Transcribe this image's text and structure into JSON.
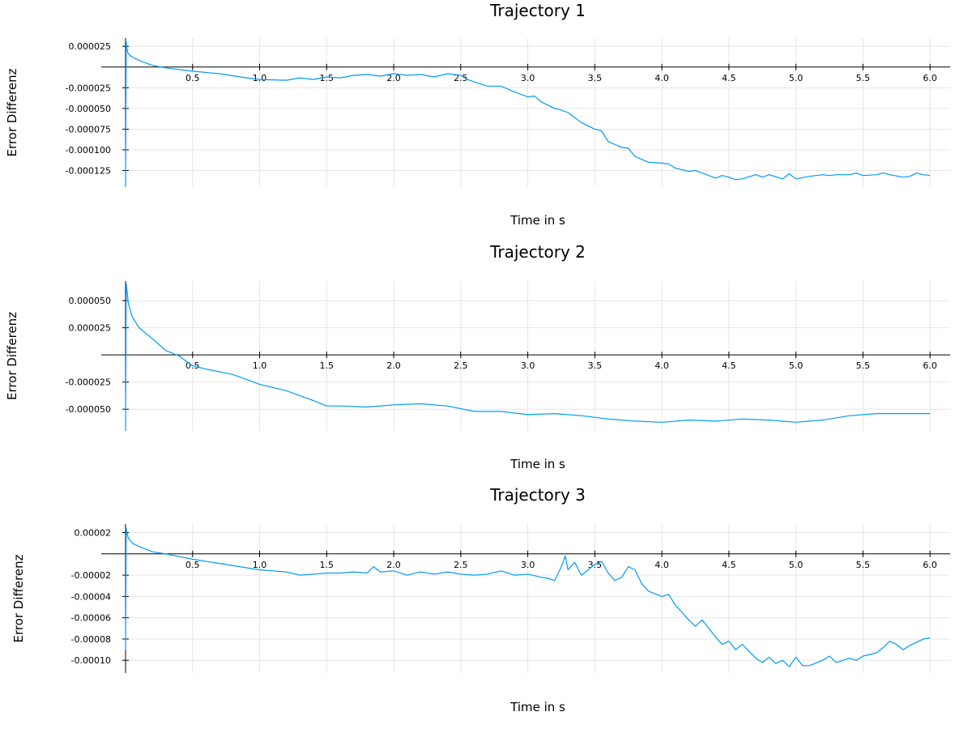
{
  "chart_data": [
    {
      "type": "line",
      "title": "Trajectory 1",
      "xlabel": "Time in s",
      "ylabel": "Error Differenz",
      "xlim": [
        0,
        6.15
      ],
      "ylim": [
        -0.000145,
        3.5e-05
      ],
      "xticks": [
        0.5,
        1.0,
        1.5,
        2.0,
        2.5,
        3.0,
        3.5,
        4.0,
        4.5,
        5.0,
        5.5,
        6.0
      ],
      "xtick_labels": [
        "0.5",
        "1.0",
        "1.5",
        "2.0",
        "2.5",
        "3.0",
        "3.5",
        "4.0",
        "4.5",
        "5.0",
        "5.5",
        "6.0"
      ],
      "yticks": [
        2.5e-05,
        -2.5e-05,
        -5e-05,
        -7.5e-05,
        -0.0001,
        -0.000125
      ],
      "ytick_labels": [
        "0.000025",
        "-0.000025",
        "-0.000050",
        "-0.000075",
        "-0.000100",
        "-0.000125"
      ],
      "grid": true,
      "color": "#009AF9",
      "series": [
        {
          "x": [
            0,
            0.005,
            0.01,
            0.02,
            0.05,
            0.1,
            0.2,
            0.3,
            0.5,
            0.7,
            0.9,
            1.0,
            1.2,
            1.3,
            1.4,
            1.5,
            1.6,
            1.7,
            1.8,
            1.9,
            2.0,
            2.1,
            2.2,
            2.3,
            2.4,
            2.5,
            2.55,
            2.6,
            2.7,
            2.8,
            2.9,
            3.0,
            3.05,
            3.1,
            3.2,
            3.25,
            3.3,
            3.4,
            3.5,
            3.55,
            3.6,
            3.7,
            3.75,
            3.8,
            3.9,
            4.0,
            4.05,
            4.1,
            4.2,
            4.25,
            4.3,
            4.4,
            4.45,
            4.5,
            4.55,
            4.6,
            4.7,
            4.75,
            4.8,
            4.9,
            4.95,
            5.0,
            5.1,
            5.2,
            5.25,
            5.3,
            5.4,
            5.45,
            5.5,
            5.6,
            5.65,
            5.7,
            5.8,
            5.85,
            5.9,
            5.95,
            6.0
          ],
          "y": [
            -0.00015,
            3e-05,
            2.2e-05,
            1.6e-05,
            1.2e-05,
            8e-06,
            2e-06,
            -1e-06,
            -5e-06,
            -8e-06,
            -1.3e-05,
            -1.5e-05,
            -1.6e-05,
            -1.3e-05,
            -1.5e-05,
            -1.2e-05,
            -1.3e-05,
            -1e-05,
            -9e-06,
            -1.1e-05,
            -8e-06,
            -1e-05,
            -9e-06,
            -1.2e-05,
            -8e-06,
            -1e-05,
            -1.5e-05,
            -1.8e-05,
            -2.3e-05,
            -2.3e-05,
            -3e-05,
            -3.6e-05,
            -3.5e-05,
            -4.2e-05,
            -5e-05,
            -5.2e-05,
            -5.5e-05,
            -6.7e-05,
            -7.5e-05,
            -7.7e-05,
            -9e-05,
            -9.7e-05,
            -9.8e-05,
            -0.000108,
            -0.000115,
            -0.000116,
            -0.000117,
            -0.000122,
            -0.000126,
            -0.000125,
            -0.000128,
            -0.000134,
            -0.000131,
            -0.000133,
            -0.000136,
            -0.000135,
            -0.00013,
            -0.000133,
            -0.00013,
            -0.000135,
            -0.000129,
            -0.000135,
            -0.000132,
            -0.00013,
            -0.000131,
            -0.00013,
            -0.00013,
            -0.000128,
            -0.000131,
            -0.00013,
            -0.000128,
            -0.00013,
            -0.000133,
            -0.000132,
            -0.000128,
            -0.00013,
            -0.000131
          ]
        }
      ]
    },
    {
      "type": "line",
      "title": "Trajectory 2",
      "xlabel": "Time in s",
      "ylabel": "Error Differenz",
      "xlim": [
        0,
        6.15
      ],
      "ylim": [
        -7e-05,
        6.8e-05
      ],
      "xticks": [
        0.5,
        1.0,
        1.5,
        2.0,
        2.5,
        3.0,
        3.5,
        4.0,
        4.5,
        5.0,
        5.5,
        6.0
      ],
      "xtick_labels": [
        "0.5",
        "1.0",
        "1.5",
        "2.0",
        "2.5",
        "3.0",
        "3.5",
        "4.0",
        "4.5",
        "5.0",
        "5.5",
        "6.0"
      ],
      "yticks": [
        5e-05,
        2.5e-05,
        -2.5e-05,
        -5e-05
      ],
      "ytick_labels": [
        "0.000050",
        "0.000025",
        "-0.000025",
        "-0.000050"
      ],
      "grid": true,
      "color": "#009AF9",
      "series": [
        {
          "x": [
            0,
            0.005,
            0.01,
            0.02,
            0.05,
            0.1,
            0.2,
            0.3,
            0.4,
            0.5,
            0.6,
            0.8,
            1.0,
            1.2,
            1.4,
            1.5,
            1.6,
            1.8,
            2.0,
            2.2,
            2.4,
            2.6,
            2.8,
            3.0,
            3.2,
            3.4,
            3.6,
            3.8,
            4.0,
            4.2,
            4.4,
            4.6,
            4.8,
            5.0,
            5.2,
            5.4,
            5.6,
            5.8,
            6.0
          ],
          "y": [
            -7e-05,
            6.5e-05,
            6e-05,
            4.8e-05,
            3.5e-05,
            2.5e-05,
            1.5e-05,
            4e-06,
            -1e-06,
            -1e-05,
            -1.3e-05,
            -1.8e-05,
            -2.7e-05,
            -3.3e-05,
            -4.2e-05,
            -4.7e-05,
            -4.7e-05,
            -4.8e-05,
            -4.6e-05,
            -4.5e-05,
            -4.7e-05,
            -5.2e-05,
            -5.2e-05,
            -5.5e-05,
            -5.4e-05,
            -5.6e-05,
            -5.9e-05,
            -6.1e-05,
            -6.2e-05,
            -6e-05,
            -6.1e-05,
            -5.9e-05,
            -6e-05,
            -6.2e-05,
            -6e-05,
            -5.6e-05,
            -5.4e-05,
            -5.4e-05,
            -5.4e-05
          ]
        }
      ]
    },
    {
      "type": "line",
      "title": "Trajectory 3",
      "xlabel": "Time in s",
      "ylabel": "Error Differenz",
      "xlim": [
        0,
        6.15
      ],
      "ylim": [
        -0.000112,
        2.8e-05
      ],
      "xticks": [
        0.5,
        1.0,
        1.5,
        2.0,
        2.5,
        3.0,
        3.5,
        4.0,
        4.5,
        5.0,
        5.5,
        6.0
      ],
      "xtick_labels": [
        "0.5",
        "1.0",
        "1.5",
        "2.0",
        "2.5",
        "3.0",
        "3.5",
        "4.0",
        "4.5",
        "5.0",
        "5.5",
        "6.0"
      ],
      "yticks": [
        2e-05,
        -2e-05,
        -4e-05,
        -6e-05,
        -8e-05,
        -0.0001
      ],
      "ytick_labels": [
        "0.00002",
        "-0.00002",
        "-0.00004",
        "-0.00006",
        "-0.00008",
        "-0.00010"
      ],
      "grid": true,
      "color": "#009AF9",
      "series": [
        {
          "x": [
            0,
            0.005,
            0.01,
            0.02,
            0.05,
            0.1,
            0.2,
            0.3,
            0.5,
            0.7,
            0.9,
            1.0,
            1.1,
            1.2,
            1.3,
            1.4,
            1.5,
            1.6,
            1.7,
            1.8,
            1.85,
            1.9,
            2.0,
            2.1,
            2.2,
            2.3,
            2.4,
            2.5,
            2.6,
            2.7,
            2.8,
            2.9,
            3.0,
            3.1,
            3.15,
            3.2,
            3.25,
            3.28,
            3.3,
            3.35,
            3.4,
            3.45,
            3.5,
            3.55,
            3.6,
            3.65,
            3.7,
            3.75,
            3.8,
            3.85,
            3.9,
            4.0,
            4.05,
            4.1,
            4.2,
            4.25,
            4.3,
            4.4,
            4.45,
            4.5,
            4.55,
            4.6,
            4.7,
            4.75,
            4.8,
            4.85,
            4.9,
            4.95,
            5.0,
            5.05,
            5.1,
            5.2,
            5.25,
            5.3,
            5.4,
            5.45,
            5.5,
            5.6,
            5.65,
            5.7,
            5.75,
            5.8,
            5.85,
            5.9,
            5.95,
            6.0
          ],
          "y": [
            -9e-05,
            2.4e-05,
            2e-05,
            1.5e-05,
            1e-05,
            7e-06,
            2e-06,
            0.0,
            -5e-06,
            -9e-06,
            -1.3e-05,
            -1.5e-05,
            -1.6e-05,
            -1.7e-05,
            -2e-05,
            -1.9e-05,
            -1.8e-05,
            -1.8e-05,
            -1.7e-05,
            -1.8e-05,
            -1.2e-05,
            -1.7e-05,
            -1.6e-05,
            -2e-05,
            -1.7e-05,
            -1.9e-05,
            -1.7e-05,
            -1.9e-05,
            -2e-05,
            -1.9e-05,
            -1.6e-05,
            -2e-05,
            -1.9e-05,
            -2.2e-05,
            -2.3e-05,
            -2.5e-05,
            -1.2e-05,
            -2e-06,
            -1.5e-05,
            -8e-06,
            -2e-05,
            -1.5e-05,
            -1e-05,
            -7e-06,
            -1.8e-05,
            -2.5e-05,
            -2.2e-05,
            -1.2e-05,
            -1.5e-05,
            -2.8e-05,
            -3.5e-05,
            -4e-05,
            -3.8e-05,
            -4.8e-05,
            -6.2e-05,
            -6.8e-05,
            -6.2e-05,
            -7.8e-05,
            -8.5e-05,
            -8.2e-05,
            -9e-05,
            -8.5e-05,
            -9.8e-05,
            -0.000102,
            -9.7e-05,
            -0.000103,
            -0.0001,
            -0.000106,
            -9.7e-05,
            -0.000105,
            -0.000105,
            -0.0001,
            -9.6e-05,
            -0.000102,
            -9.8e-05,
            -0.0001,
            -9.6e-05,
            -9.3e-05,
            -8.8e-05,
            -8.2e-05,
            -8.5e-05,
            -9e-05,
            -8.6e-05,
            -8.3e-05,
            -8e-05,
            -7.9e-05
          ]
        }
      ]
    }
  ]
}
